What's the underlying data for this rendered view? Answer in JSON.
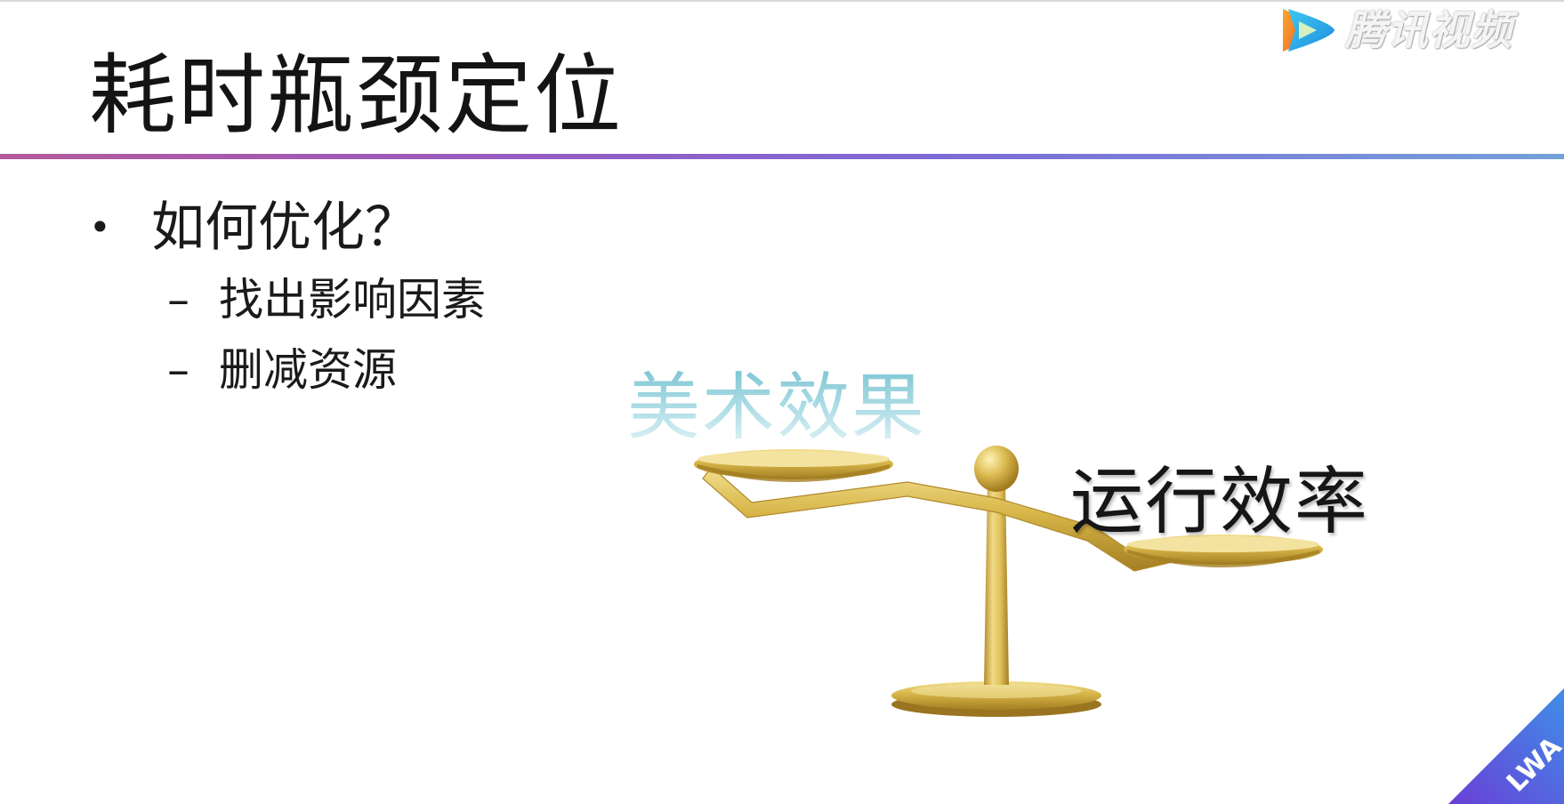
{
  "slide": {
    "title": "耗时瓶颈定位",
    "bullets": [
      {
        "marker": "•",
        "text": "如何优化？"
      },
      {
        "marker": "–",
        "text": "找出影响因素"
      },
      {
        "marker": "–",
        "text": "删减资源"
      }
    ],
    "illustration": {
      "left_label": "美术效果",
      "right_label": "运行效率",
      "object": "balance-scale"
    },
    "colors": {
      "divider_start": "#b45a9a",
      "divider_end": "#74a0da",
      "gold": "#d4b34a",
      "art_label": "#9cd6e0"
    }
  },
  "overlay": {
    "watermark_text": "腾讯视频",
    "watermark_icon": "play-icon",
    "corner_badge_text": "LWA"
  }
}
